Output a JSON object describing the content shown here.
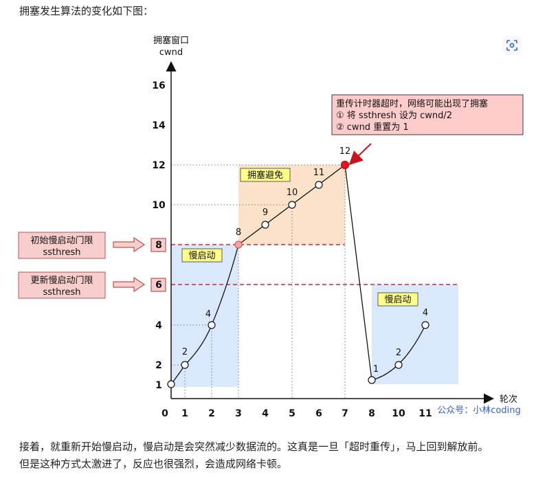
{
  "text": {
    "intro": "拥塞发生算法的变化如下图：",
    "para1": "接着，就重新开始慢启动，慢启动是会突然减少数据流的。这真是一旦「超时重传」，马上回到解放前。",
    "para2": "但是这种方式太激进了，反应也很强烈，会造成网络卡顿。"
  },
  "diagram": {
    "ylabel_line1": "拥塞窗口",
    "ylabel_line2": "cwnd",
    "xlabel": "轮次",
    "y_ticks": [
      "16",
      "14",
      "12",
      "10",
      "8",
      "6",
      "4",
      "2",
      "1"
    ],
    "x_ticks": [
      "0",
      "1",
      "2",
      "3",
      "4",
      "5",
      "6",
      "7",
      "8",
      "10",
      "11"
    ],
    "box_init_line1": "初始慢启动门限",
    "box_init_line2": "ssthresh",
    "box_new_line1": "更新慢启动门限",
    "box_new_line2": "ssthresh",
    "region_slow_start_1": "慢启动",
    "region_avoid": "拥塞避免",
    "region_slow_start_2": "慢启动",
    "callout_line1": "重传计时器超时，网络可能出现了拥塞",
    "callout_line2": "① 将 ssthresh 设为 cwnd/2",
    "callout_line3": "② cwnd 重置为 1",
    "point_labels": [
      "2",
      "4",
      "8",
      "9",
      "10",
      "11",
      "12",
      "1",
      "2",
      "4"
    ],
    "watermark": "公众号：小林coding",
    "colors": {
      "slow_start_fill": "#dae8fc",
      "avoid_fill": "#fbe2c8",
      "threshold_line": "#e0242a",
      "threshold_box": "#f8cecc",
      "callout_fill": "#ffcccc",
      "label_fill": "#ffff88",
      "peak_point": "#e3161b",
      "watermark": "#2e5fe0"
    }
  }
}
